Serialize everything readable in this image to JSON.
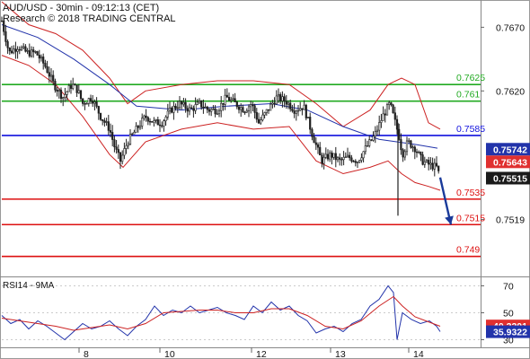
{
  "header": {
    "title": "AUD/USD - 30min - 09:12:13 (CET)",
    "credit": "Research © 2018 TRADING CENTRAL"
  },
  "colors": {
    "candle": "#202020",
    "bollinger": "#cc2222",
    "moving_average": "#2233aa",
    "support": "#dd1111",
    "resistance": "#22aa22",
    "pivot": "#1111dd",
    "arrow": "#1a3a9a",
    "rsi": "#2233aa",
    "rsi_ma": "#cc2222",
    "last_price_box": "#1a1a1a",
    "other_price_box": "#e03030",
    "rsi_box": "#2233aa"
  },
  "chart_data": [
    {
      "type": "candlestick",
      "title": "AUD/USD - 30min - 09:12:13 (CET)",
      "ylim": [
        0.7475,
        0.769
      ],
      "x_day_labels": [
        "8",
        "10",
        "12",
        "13",
        "14"
      ],
      "y_ticks": [
        "0.7670",
        "0.7620",
        "0.7519"
      ],
      "levels": [
        {
          "label": "0.7625",
          "value": 0.7625,
          "kind": "resistance"
        },
        {
          "label": "0.761",
          "value": 0.7612,
          "kind": "resistance"
        },
        {
          "label": "0.7585",
          "value": 0.7585,
          "kind": "pivot"
        },
        {
          "label": "0.7535",
          "value": 0.7535,
          "kind": "support"
        },
        {
          "label": "0.7515",
          "value": 0.7515,
          "kind": "support"
        },
        {
          "label": "0.749",
          "value": 0.749,
          "kind": "support"
        }
      ],
      "price_boxes": [
        {
          "label": "0.75742",
          "value": 0.75742,
          "kind": "rsi"
        },
        {
          "label": "0.75643",
          "value": 0.75643,
          "kind": "other"
        },
        {
          "label": "0.75515",
          "value": 0.75515,
          "kind": "last"
        }
      ],
      "close_path": [
        [
          0,
          0.7675
        ],
        [
          8,
          0.765
        ],
        [
          18,
          0.7655
        ],
        [
          28,
          0.765
        ],
        [
          38,
          0.765
        ],
        [
          48,
          0.764
        ],
        [
          58,
          0.7625
        ],
        [
          68,
          0.7615
        ],
        [
          78,
          0.7625
        ],
        [
          85,
          0.762
        ],
        [
          90,
          0.761
        ],
        [
          100,
          0.7615
        ],
        [
          110,
          0.76
        ],
        [
          120,
          0.759
        ],
        [
          126,
          0.7575
        ],
        [
          132,
          0.7565
        ],
        [
          140,
          0.758
        ],
        [
          150,
          0.759
        ],
        [
          160,
          0.76
        ],
        [
          170,
          0.7595
        ],
        [
          178,
          0.7595
        ],
        [
          188,
          0.7605
        ],
        [
          198,
          0.761
        ],
        [
          210,
          0.7605
        ],
        [
          220,
          0.761
        ],
        [
          230,
          0.7605
        ],
        [
          240,
          0.7605
        ],
        [
          250,
          0.7615
        ],
        [
          260,
          0.761
        ],
        [
          270,
          0.7605
        ],
        [
          278,
          0.761
        ],
        [
          286,
          0.7595
        ],
        [
          296,
          0.7605
        ],
        [
          306,
          0.7615
        ],
        [
          316,
          0.7612
        ],
        [
          326,
          0.7605
        ],
        [
          336,
          0.7608
        ],
        [
          346,
          0.7585
        ],
        [
          356,
          0.7565
        ],
        [
          366,
          0.757
        ],
        [
          376,
          0.7565
        ],
        [
          386,
          0.7568
        ],
        [
          396,
          0.7565
        ],
        [
          405,
          0.7575
        ],
        [
          415,
          0.7585
        ],
        [
          424,
          0.76
        ],
        [
          432,
          0.761
        ],
        [
          438,
          0.7595
        ],
        [
          442,
          0.7585
        ],
        [
          446,
          0.757
        ],
        [
          452,
          0.758
        ],
        [
          460,
          0.7575
        ],
        [
          468,
          0.7565
        ],
        [
          476,
          0.7562
        ],
        [
          484,
          0.756
        ],
        [
          488,
          0.7552
        ]
      ],
      "moving_average": [
        [
          0,
          0.7672
        ],
        [
          40,
          0.7662
        ],
        [
          80,
          0.7645
        ],
        [
          120,
          0.7625
        ],
        [
          150,
          0.7608
        ],
        [
          200,
          0.7605
        ],
        [
          250,
          0.7608
        ],
        [
          300,
          0.761
        ],
        [
          340,
          0.7605
        ],
        [
          380,
          0.7592
        ],
        [
          420,
          0.7582
        ],
        [
          460,
          0.7578
        ],
        [
          485,
          0.7575
        ]
      ],
      "bollinger_upper": [
        [
          0,
          0.769
        ],
        [
          30,
          0.7672
        ],
        [
          60,
          0.7665
        ],
        [
          90,
          0.7652
        ],
        [
          120,
          0.763
        ],
        [
          140,
          0.761
        ],
        [
          160,
          0.762
        ],
        [
          200,
          0.7625
        ],
        [
          240,
          0.7628
        ],
        [
          280,
          0.7628
        ],
        [
          320,
          0.7625
        ],
        [
          350,
          0.761
        ],
        [
          380,
          0.7592
        ],
        [
          410,
          0.7605
        ],
        [
          430,
          0.7625
        ],
        [
          445,
          0.763
        ],
        [
          460,
          0.7625
        ],
        [
          475,
          0.7595
        ],
        [
          488,
          0.759
        ]
      ],
      "bollinger_lower": [
        [
          0,
          0.7648
        ],
        [
          30,
          0.764
        ],
        [
          60,
          0.7625
        ],
        [
          90,
          0.76
        ],
        [
          120,
          0.757
        ],
        [
          135,
          0.756
        ],
        [
          160,
          0.758
        ],
        [
          200,
          0.759
        ],
        [
          240,
          0.7595
        ],
        [
          280,
          0.759
        ],
        [
          320,
          0.7592
        ],
        [
          350,
          0.7565
        ],
        [
          380,
          0.7555
        ],
        [
          410,
          0.756
        ],
        [
          430,
          0.7565
        ],
        [
          445,
          0.7555
        ],
        [
          460,
          0.7548
        ],
        [
          475,
          0.7545
        ],
        [
          488,
          0.7542
        ]
      ],
      "projection": {
        "from": [
          488,
          0.7552
        ],
        "to": [
          500,
          0.7515
        ]
      }
    },
    {
      "type": "line",
      "title": "RSI14 - 9MA",
      "ylim": [
        25,
        75
      ],
      "y_ticks": [
        "70",
        "50",
        "30"
      ],
      "value_boxes": [
        {
          "label": "40.2201",
          "value": 40.22,
          "kind": "other"
        },
        {
          "label": "35.9322",
          "value": 35.93,
          "kind": "rsi"
        }
      ],
      "series": [
        {
          "role": "rsi",
          "points": [
            [
              0,
              48
            ],
            [
              10,
              42
            ],
            [
              20,
              45
            ],
            [
              30,
              38
            ],
            [
              40,
              44
            ],
            [
              50,
              40
            ],
            [
              60,
              35
            ],
            [
              70,
              30
            ],
            [
              80,
              36
            ],
            [
              90,
              42
            ],
            [
              100,
              38
            ],
            [
              110,
              40
            ],
            [
              120,
              44
            ],
            [
              130,
              38
            ],
            [
              140,
              33
            ],
            [
              150,
              40
            ],
            [
              160,
              45
            ],
            [
              170,
              55
            ],
            [
              180,
              48
            ],
            [
              190,
              52
            ],
            [
              200,
              50
            ],
            [
              210,
              55
            ],
            [
              220,
              50
            ],
            [
              230,
              52
            ],
            [
              240,
              54
            ],
            [
              250,
              50
            ],
            [
              260,
              48
            ],
            [
              270,
              45
            ],
            [
              280,
              55
            ],
            [
              290,
              50
            ],
            [
              300,
              58
            ],
            [
              310,
              52
            ],
            [
              320,
              55
            ],
            [
              330,
              48
            ],
            [
              340,
              44
            ],
            [
              350,
              35
            ],
            [
              360,
              38
            ],
            [
              370,
              40
            ],
            [
              380,
              36
            ],
            [
              390,
              42
            ],
            [
              400,
              45
            ],
            [
              410,
              55
            ],
            [
              420,
              60
            ],
            [
              430,
              70
            ],
            [
              436,
              65
            ],
            [
              440,
              30
            ],
            [
              446,
              50
            ],
            [
              456,
              45
            ],
            [
              466,
              42
            ],
            [
              476,
              44
            ],
            [
              484,
              40
            ],
            [
              488,
              36
            ]
          ]
        },
        {
          "role": "ma",
          "points": [
            [
              0,
              46
            ],
            [
              20,
              44
            ],
            [
              40,
              42
            ],
            [
              60,
              40
            ],
            [
              80,
              37
            ],
            [
              100,
              39
            ],
            [
              120,
              41
            ],
            [
              140,
              38
            ],
            [
              160,
              42
            ],
            [
              180,
              50
            ],
            [
              200,
              51
            ],
            [
              220,
              52
            ],
            [
              240,
              52
            ],
            [
              260,
              50
            ],
            [
              280,
              50
            ],
            [
              300,
              53
            ],
            [
              320,
              53
            ],
            [
              340,
              48
            ],
            [
              360,
              40
            ],
            [
              380,
              38
            ],
            [
              400,
              44
            ],
            [
              420,
              55
            ],
            [
              436,
              62
            ],
            [
              446,
              55
            ],
            [
              460,
              47
            ],
            [
              476,
              43
            ],
            [
              488,
              40
            ]
          ]
        }
      ]
    }
  ]
}
